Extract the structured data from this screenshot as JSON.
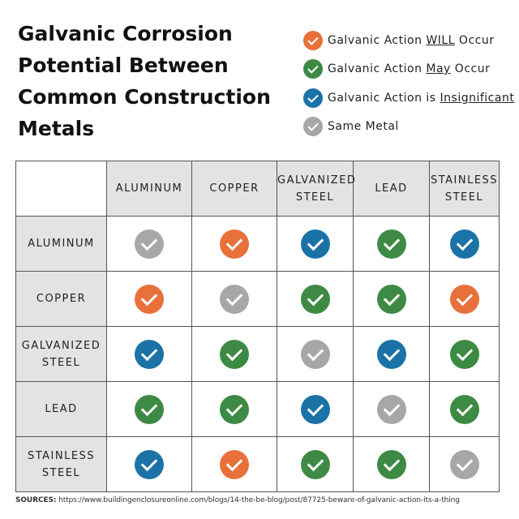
{
  "title_lines": [
    "Galvanic Corrosion",
    "Potential Between",
    "Common Construction",
    "Metals"
  ],
  "legend": [
    {
      "key": "will",
      "prefix": "Galvanic Action ",
      "emph": "WILL",
      "suffix": " Occur",
      "color": "#e8703a",
      "icon": "check-icon"
    },
    {
      "key": "may",
      "prefix": "Galvanic Action ",
      "emph": "May",
      "suffix": " Occur",
      "color": "#3d8a44",
      "icon": "check-icon"
    },
    {
      "key": "insignificant",
      "prefix": "Galvanic Action is ",
      "emph": "Insignificant",
      "suffix": "",
      "color": "#1b72a6",
      "icon": "check-icon"
    },
    {
      "key": "same",
      "prefix": "Same Metal",
      "emph": "",
      "suffix": "",
      "color": "#a7a7a7",
      "icon": "check-icon"
    }
  ],
  "chart_data": {
    "type": "table",
    "columns": [
      [
        "ALUMINUM"
      ],
      [
        "COPPER"
      ],
      [
        "GALVANIZED",
        "STEEL"
      ],
      [
        "LEAD"
      ],
      [
        "STAINLESS",
        "STEEL"
      ]
    ],
    "rows": [
      {
        "label": [
          "ALUMINUM"
        ],
        "cells": [
          "same",
          "will",
          "insignificant",
          "may",
          "insignificant"
        ]
      },
      {
        "label": [
          "COPPER"
        ],
        "cells": [
          "will",
          "same",
          "may",
          "may",
          "will"
        ]
      },
      {
        "label": [
          "GALVANIZED",
          "STEEL"
        ],
        "cells": [
          "insignificant",
          "may",
          "same",
          "insignificant",
          "may"
        ]
      },
      {
        "label": [
          "LEAD"
        ],
        "cells": [
          "may",
          "may",
          "insignificant",
          "same",
          "may"
        ]
      },
      {
        "label": [
          "STAINLESS",
          "STEEL"
        ],
        "cells": [
          "insignificant",
          "will",
          "may",
          "may",
          "same"
        ]
      }
    ]
  },
  "sources": {
    "label": "SOURCES:",
    "text": "https://www.buildingenclosureonline.com/blogs/14-the-be-blog/post/87725-beware-of-galvanic-action-its-a-thing"
  }
}
